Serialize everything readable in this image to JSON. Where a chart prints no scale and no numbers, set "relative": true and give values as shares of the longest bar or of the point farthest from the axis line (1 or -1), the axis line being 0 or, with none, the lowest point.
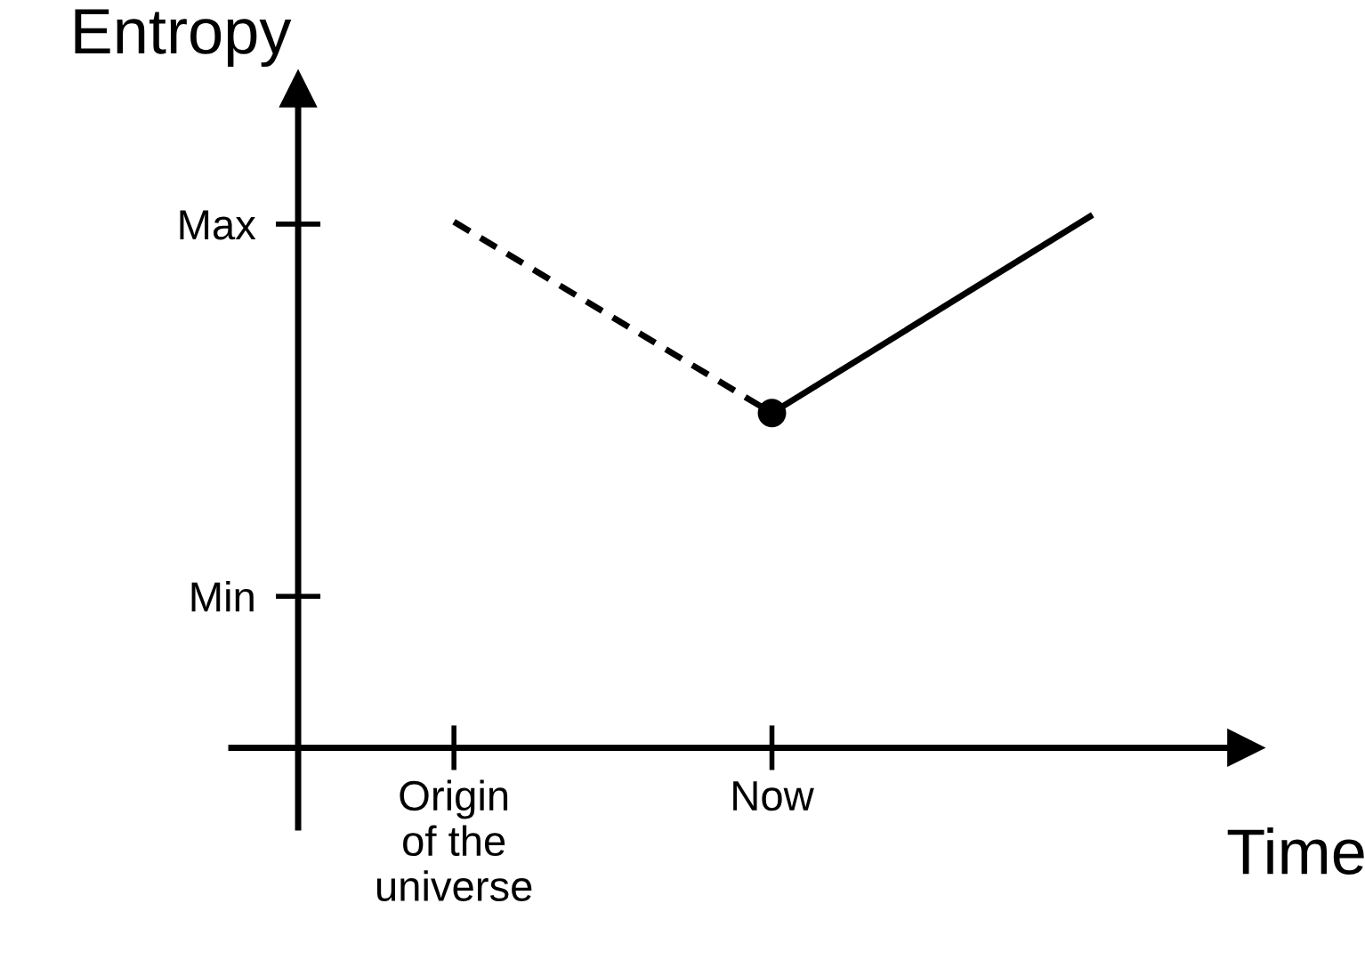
{
  "chart_data": {
    "type": "line",
    "xlabel": "Time",
    "ylabel": "Entropy",
    "relative": true,
    "categories": [
      "Origin\nof the\nuniverse",
      "Now",
      null
    ],
    "annotations": [
      "Max",
      "Min"
    ],
    "series": [
      {
        "values": [
          0.99,
          0.63,
          null
        ],
        "color": "#000000",
        "line_style": "dashed"
      },
      {
        "values": [
          null,
          0.63,
          1.0
        ],
        "color": "#000000",
        "line_style": "solid"
      },
      {
        "type": "scatter",
        "values": [
          null,
          0.63,
          null
        ],
        "color": "#000000",
        "marker": "circle"
      }
    ]
  }
}
